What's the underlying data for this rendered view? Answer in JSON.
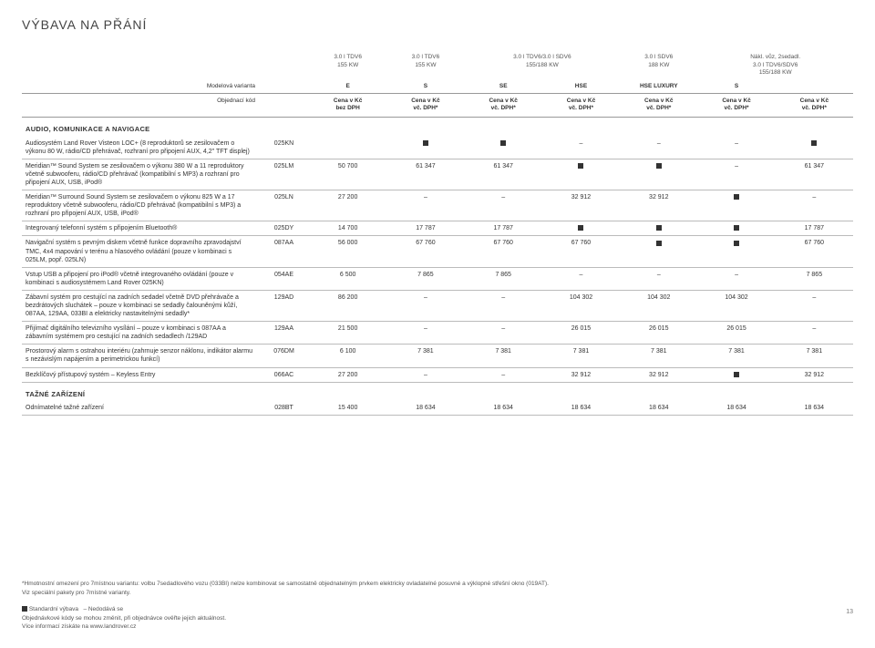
{
  "title": "VÝBAVA NA PŘÁNÍ",
  "colLabels": {
    "model": "Modelová varianta",
    "order": "Objednací kód"
  },
  "head1": [
    "3.0 l TDV6\n155 KW",
    "3.0 l TDV6\n155 KW",
    "3.0 l TDV6/3.0 l SDV6\n155/188 KW",
    "",
    "3.0 l SDV6\n188 KW",
    "Nákl. vůz, 2sedadl.\n3.0 l TDV6/SDV6\n155/188 KW",
    ""
  ],
  "head2": [
    "E",
    "S",
    "SE",
    "HSE",
    "HSE LUXURY",
    "S",
    ""
  ],
  "head3": [
    "Cena v Kč\nbez DPH",
    "Cena v Kč\nvč. DPH*",
    "Cena v Kč\nvč. DPH*",
    "Cena v Kč\nvč. DPH*",
    "Cena v Kč\nvč. DPH*",
    "Cena v Kč\nvč. DPH*",
    "Cena v Kč\nvč. DPH*"
  ],
  "sections": [
    {
      "title": "AUDIO, KOMUNIKACE A NAVIGACE",
      "rows": [
        {
          "d": "Audiosystém Land Rover Visteon LOC+ (8 reproduktorů se zesilovačem o výkonu 80 W, rádio/CD přehrávač, rozhraní pro připojení AUX, 4,2\" TFT displej)",
          "c": "025KN",
          "v": [
            "",
            "■",
            "■",
            "–",
            "–",
            "–",
            "■"
          ]
        },
        {
          "d": "Meridian™ Sound System se zesilovačem o výkonu 380 W a 11 reproduktory včetně subwooferu, rádio/CD přehrávač (kompatibilní s MP3) a rozhraní pro připojení AUX, USB, iPod®",
          "c": "025LM",
          "v": [
            "50 700",
            "61 347",
            "61 347",
            "■",
            "■",
            "–",
            "61 347"
          ]
        },
        {
          "d": "Meridian™ Surround Sound System  se zesilovačem o výkonu 825 W a 17 reproduktory včetně subwooferu, rádio/CD přehrávač (kompatibilní s MP3) a rozhraní pro připojení AUX, USB, iPod®",
          "c": "025LN",
          "v": [
            "27 200",
            "–",
            "–",
            "32 912",
            "32 912",
            "■",
            "–"
          ]
        },
        {
          "d": "Integrovaný telefonní systém s připojením Bluetooth®",
          "c": "025DY",
          "v": [
            "14 700",
            "17 787",
            "17 787",
            "■",
            "■",
            "■",
            "17 787"
          ]
        },
        {
          "d": "Navigační systém s pevným diskem včetně funkce dopravního zpravodajství TMC, 4x4 mapování v terénu a hlasového ovládání (pouze v kombinaci s 025LM, popř. 025LN)",
          "c": "087AA",
          "v": [
            "56 000",
            "67 760",
            "67 760",
            "67 760",
            "■",
            "■",
            "67 760"
          ]
        },
        {
          "d": "Vstup USB a připojení pro iPod® včetně integrovaného ovládání (pouze v kombinaci s audiosystémem Land Rover 025KN)",
          "c": "054AE",
          "v": [
            "6 500",
            "7 865",
            "7 865",
            "–",
            "–",
            "–",
            "7 865"
          ]
        },
        {
          "d": "Zábavní systém pro cestující na zadních sedadel včetně DVD přehrávače a bezdrátových sluchátek – pouze v kombinaci se sedadly čalouněnými kůží, 087AA, 129AA, 033BI a elektricky nastavitelnými sedadly*",
          "c": "129AD",
          "v": [
            "86 200",
            "–",
            "–",
            "104 302",
            "104 302",
            "104 302",
            "–"
          ]
        },
        {
          "d": "Přijímač digitálního televizního vysílání – pouze v kombinaci s 087AA a zábavním systémem pro cestující na zadních sedadlech /129AD",
          "c": "129AA",
          "v": [
            "21 500",
            "–",
            "–",
            "26 015",
            "26 015",
            "26 015",
            "–"
          ]
        },
        {
          "d": "Prostorový alarm s ostrahou interiéru (zahrnuje senzor náklonu, indikátor alarmu s nezávislým napájením a perimetrickou funkcí)",
          "c": "076DM",
          "v": [
            "6 100",
            "7 381",
            "7 381",
            "7 381",
            "7 381",
            "7 381",
            "7 381"
          ]
        },
        {
          "d": "Bezklíčový přístupový systém – Keyless Entry",
          "c": "066AC",
          "v": [
            "27 200",
            "–",
            "–",
            "32 912",
            "32 912",
            "■",
            "32 912"
          ]
        }
      ]
    },
    {
      "title": "TAŽNÉ ZAŘÍZENÍ",
      "rows": [
        {
          "d": "Odnímatelné tažné zařízení",
          "c": "028BT",
          "v": [
            "15 400",
            "18 634",
            "18 634",
            "18 634",
            "18 634",
            "18 634",
            "18 634"
          ]
        }
      ]
    }
  ],
  "foot": {
    "l1": "*Hmotnostní omezení pro 7místnou variantu: volbu 7sedadlového vozu (033BI) nelze kombinovat se samostatně objednatelným prvkem elektricky ovladatelné posuvné a výklopné střešní okno (019AT).",
    "l2": "Viz speciální pakety pro 7místné varianty.",
    "l3a": "Standardní výbava",
    "l3b": "– Nedodává se",
    "l4": "Objednávkové kódy se mohou změnit, při objednávce ověřte jejich aktuálnost.",
    "l5": "Více informací získáte na www.landrover.cz"
  },
  "page": "13"
}
